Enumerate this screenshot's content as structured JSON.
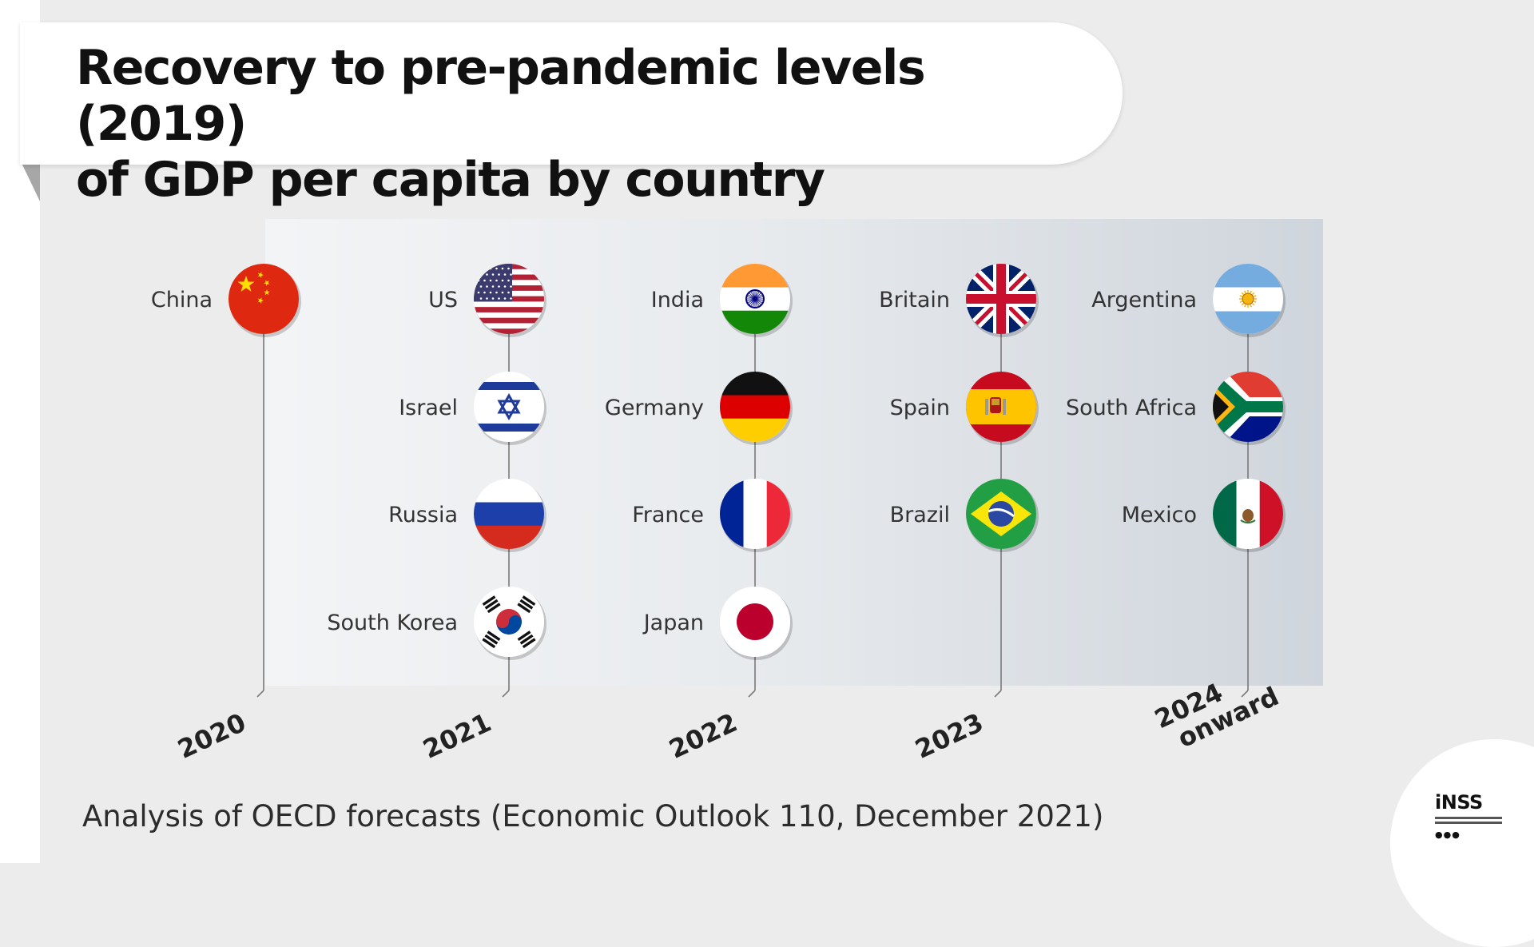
{
  "header": {
    "title_line1": "Recovery to pre-pandemic levels (2019)",
    "title_line2": "of GDP per capita by country"
  },
  "subtitle": "Analysis of OECD forecasts (Economic Outlook 110, December 2021)",
  "logo": {
    "text": "iNSS"
  },
  "colors": {
    "panel_start": "#f3f4f6",
    "panel_end": "#cfd5dc",
    "stem": "#7a7a7a"
  },
  "chart_data": {
    "type": "table",
    "title": "Recovery to pre-pandemic levels (2019) of GDP per capita by country",
    "columns": [
      {
        "year_lines": [
          "2020"
        ],
        "countries": [
          {
            "name": "China",
            "flag": "china-flag"
          }
        ]
      },
      {
        "year_lines": [
          "2021"
        ],
        "countries": [
          {
            "name": "US",
            "flag": "us-flag"
          },
          {
            "name": "Israel",
            "flag": "israel-flag"
          },
          {
            "name": "Russia",
            "flag": "russia-flag"
          },
          {
            "name": "South Korea",
            "flag": "south-korea-flag"
          }
        ]
      },
      {
        "year_lines": [
          "2022"
        ],
        "countries": [
          {
            "name": "India",
            "flag": "india-flag"
          },
          {
            "name": "Germany",
            "flag": "germany-flag"
          },
          {
            "name": "France",
            "flag": "france-flag"
          },
          {
            "name": "Japan",
            "flag": "japan-flag"
          }
        ]
      },
      {
        "year_lines": [
          "2023"
        ],
        "countries": [
          {
            "name": "Britain",
            "flag": "britain-flag"
          },
          {
            "name": "Spain",
            "flag": "spain-flag"
          },
          {
            "name": "Brazil",
            "flag": "brazil-flag"
          }
        ]
      },
      {
        "year_lines": [
          "2024",
          "onward"
        ],
        "countries": [
          {
            "name": "Argentina",
            "flag": "argentina-flag"
          },
          {
            "name": "South Africa",
            "flag": "south-africa-flag"
          },
          {
            "name": "Mexico",
            "flag": "mexico-flag"
          }
        ]
      }
    ]
  }
}
